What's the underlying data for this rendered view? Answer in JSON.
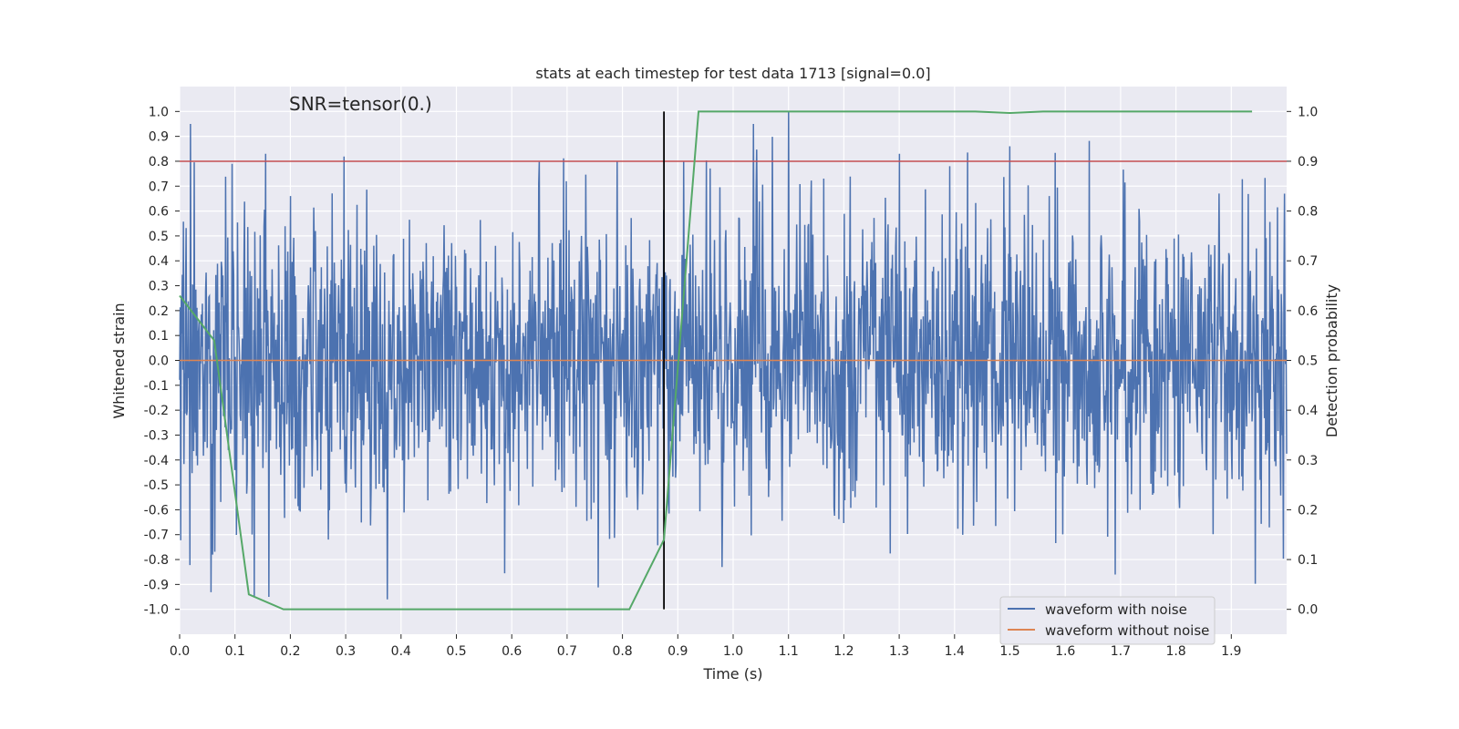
{
  "chart_data": {
    "type": "line",
    "title": "stats at each timestep for test data 1713 [signal=0.0]",
    "annotation": "SNR=tensor(0.)",
    "xlabel": "Time (s)",
    "ylabel": "Whitened strain",
    "y2label": "Detection probability",
    "xlim": [
      0.0,
      2.0
    ],
    "ylim": [
      -1.1,
      1.1
    ],
    "y2lim": [
      -0.05,
      1.05
    ],
    "xticks": [
      "0.0",
      "0.1",
      "0.2",
      "0.3",
      "0.4",
      "0.5",
      "0.6",
      "0.7",
      "0.8",
      "0.9",
      "1.0",
      "1.1",
      "1.2",
      "1.3",
      "1.4",
      "1.5",
      "1.6",
      "1.7",
      "1.8",
      "1.9"
    ],
    "yticks": [
      "1.0",
      "0.9",
      "0.8",
      "0.7",
      "0.6",
      "0.5",
      "0.4",
      "0.3",
      "0.2",
      "0.1",
      "0.0",
      "-0.1",
      "-0.2",
      "-0.3",
      "-0.4",
      "-0.5",
      "-0.6",
      "-0.7",
      "-0.8",
      "-0.9",
      "-1.0"
    ],
    "y2ticks": [
      "1.0",
      "0.9",
      "0.8",
      "0.7",
      "0.6",
      "0.5",
      "0.4",
      "0.3",
      "0.2",
      "0.1",
      "0.0"
    ],
    "grid": true,
    "legend_position": "lower-right",
    "threshold_line": {
      "y2": 0.9,
      "color": "#c44e52"
    },
    "vertical_marker": {
      "x": 0.875,
      "y2_range": [
        0.0,
        1.0
      ],
      "color": "#000000"
    },
    "series": [
      {
        "name": "waveform with noise",
        "color": "#4c72b0",
        "axis": "left",
        "x_range": [
          0.0,
          2.0
        ],
        "num_points": 2048,
        "seed": 1713,
        "noise_std": 0.3,
        "spikes": [
          {
            "x": 0.155,
            "y": 0.83
          },
          {
            "x": 0.095,
            "y": 0.79
          },
          {
            "x": 0.375,
            "y": -0.96
          },
          {
            "x": 0.79,
            "y": 0.8
          },
          {
            "x": 1.1,
            "y": 1.0
          },
          {
            "x": 1.3,
            "y": 0.83
          },
          {
            "x": 1.5,
            "y": 0.86
          },
          {
            "x": 1.69,
            "y": -0.86
          },
          {
            "x": 0.98,
            "y": -0.83
          },
          {
            "x": 0.06,
            "y": -0.78
          }
        ]
      },
      {
        "name": "waveform without noise",
        "color": "#dd8452",
        "axis": "left",
        "x": [
          0.0,
          2.0
        ],
        "y": [
          0.0,
          0.0
        ]
      },
      {
        "name": "detection probability",
        "color": "#55a868",
        "axis": "right",
        "x": [
          0.0,
          0.0625,
          0.125,
          0.1875,
          0.25,
          0.3125,
          0.375,
          0.4375,
          0.5,
          0.5625,
          0.625,
          0.6875,
          0.75,
          0.8125,
          0.875,
          0.9375,
          1.0,
          1.0625,
          1.125,
          1.1875,
          1.25,
          1.3125,
          1.375,
          1.4375,
          1.5,
          1.5625,
          1.625,
          1.6875,
          1.75,
          1.8125,
          1.875,
          1.9375
        ],
        "y": [
          0.63,
          0.54,
          0.03,
          0.0,
          0.0,
          0.0,
          0.0,
          0.0,
          0.0,
          0.0,
          0.0,
          0.0,
          0.0,
          0.0,
          0.14,
          1.0,
          1.0,
          1.0,
          1.0,
          1.0,
          1.0,
          1.0,
          1.0,
          1.0,
          0.997,
          1.0,
          1.0,
          1.0,
          1.0,
          1.0,
          1.0,
          1.0
        ]
      }
    ]
  }
}
